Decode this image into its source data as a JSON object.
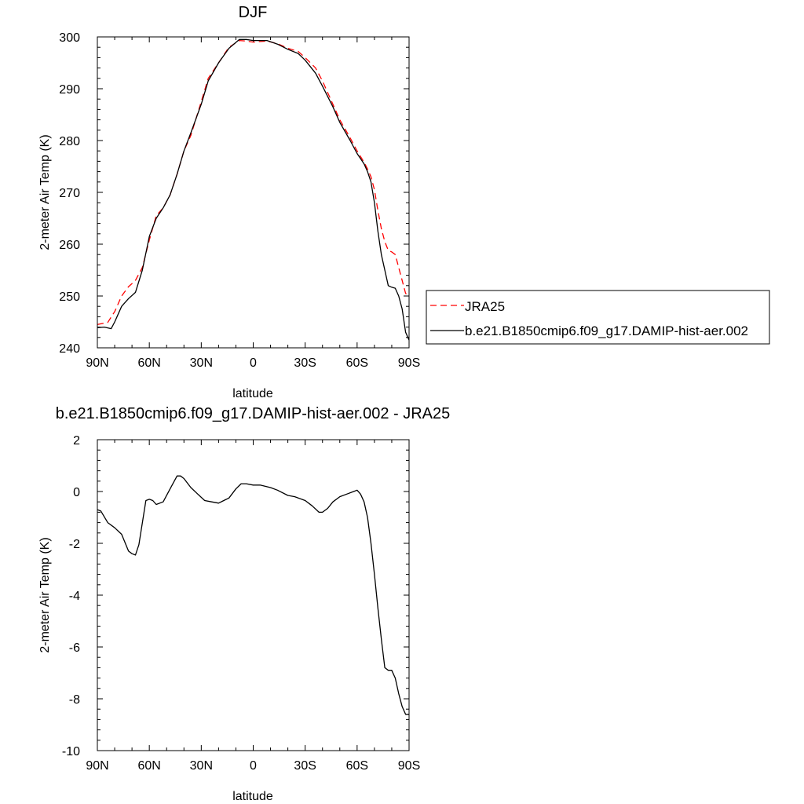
{
  "chart_data": [
    {
      "type": "line",
      "title": "DJF",
      "xlabel": "latitude",
      "ylabel": "2-meter Air Temp (K)",
      "xlim": [
        90,
        -90
      ],
      "ylim": [
        240,
        300
      ],
      "xticks": [
        90,
        60,
        30,
        0,
        -30,
        -60,
        -90
      ],
      "xtick_labels": [
        "90N",
        "60N",
        "30N",
        "0",
        "30S",
        "60S",
        "90S"
      ],
      "yticks": [
        240,
        250,
        260,
        270,
        280,
        290,
        300
      ],
      "ytick_labels": [
        "240",
        "250",
        "260",
        "270",
        "280",
        "290",
        "300"
      ],
      "legend_position": "right",
      "series": [
        {
          "name": "JRA25",
          "color": "#ff0000",
          "dash": "dashed",
          "x": [
            90,
            84,
            80,
            76,
            72,
            68,
            64,
            60,
            56,
            52,
            48,
            44,
            40,
            36,
            30,
            26,
            20,
            14,
            8,
            4,
            0,
            -4,
            -8,
            -14,
            -20,
            -26,
            -30,
            -36,
            -40,
            -46,
            -50,
            -56,
            -60,
            -64,
            -66,
            -68,
            -70,
            -72,
            -74,
            -76,
            -78,
            -80,
            -82,
            -84,
            -86,
            -88,
            -90
          ],
          "y": [
            244.5,
            244.9,
            247.0,
            250.0,
            251.8,
            253.0,
            255.5,
            260.8,
            265.5,
            267.0,
            269.5,
            273.5,
            278.0,
            281.0,
            287.5,
            292.0,
            295.0,
            298.0,
            299.3,
            299.2,
            299.0,
            299.1,
            299.2,
            298.7,
            297.8,
            297.2,
            296.0,
            294.0,
            291.5,
            287.0,
            284.0,
            280.5,
            278.0,
            275.8,
            274.5,
            273.0,
            270.5,
            266.5,
            263.0,
            260.5,
            258.8,
            258.5,
            258.0,
            255.5,
            253.0,
            250.5,
            250.0
          ]
        },
        {
          "name": "b.e21.B1850cmip6.f09_g17.DAMIP-hist-aer.002",
          "color": "#000000",
          "dash": "solid",
          "x": [
            90,
            86,
            82,
            80,
            76,
            72,
            68,
            64,
            60,
            56,
            52,
            48,
            44,
            40,
            36,
            30,
            26,
            20,
            14,
            8,
            4,
            0,
            -4,
            -8,
            -14,
            -20,
            -26,
            -30,
            -36,
            -40,
            -46,
            -50,
            -56,
            -60,
            -64,
            -66,
            -68,
            -70,
            -72,
            -74,
            -76,
            -78,
            -80,
            -82,
            -84,
            -86,
            -88,
            -90
          ],
          "y": [
            243.9,
            244.0,
            243.7,
            245.0,
            248.0,
            249.5,
            250.7,
            255.0,
            261.5,
            265.0,
            267.0,
            269.5,
            273.5,
            278.0,
            281.5,
            287.0,
            291.5,
            295.0,
            297.8,
            299.5,
            299.5,
            299.3,
            299.3,
            299.3,
            298.6,
            297.6,
            296.8,
            295.5,
            293.0,
            290.5,
            286.5,
            283.5,
            280.0,
            277.5,
            275.5,
            274.0,
            272.0,
            268.0,
            262.5,
            258.0,
            255.0,
            252.0,
            251.7,
            251.5,
            250.0,
            247.5,
            243.0,
            241.5
          ]
        }
      ]
    },
    {
      "type": "line",
      "title": "b.e21.B1850cmip6.f09_g17.DAMIP-hist-aer.002 - JRA25",
      "xlabel": "latitude",
      "ylabel": "2-meter Air Temp (K)",
      "xlim": [
        90,
        -90
      ],
      "ylim": [
        -10,
        2
      ],
      "xticks": [
        90,
        60,
        30,
        0,
        -30,
        -60,
        -90
      ],
      "xtick_labels": [
        "90N",
        "60N",
        "30N",
        "0",
        "30S",
        "60S",
        "90S"
      ],
      "yticks": [
        -10,
        -8,
        -6,
        -4,
        -2,
        0,
        2
      ],
      "ytick_labels": [
        "-10",
        "-8",
        "-6",
        "-4",
        "-2",
        "0",
        "2"
      ],
      "series": [
        {
          "color": "#000000",
          "dash": "solid",
          "x": [
            90,
            88,
            84,
            80,
            76,
            72,
            70,
            68,
            66,
            62,
            60,
            58,
            56,
            52,
            48,
            44,
            42,
            40,
            36,
            32,
            28,
            24,
            20,
            17,
            14,
            10,
            7,
            4,
            0,
            -4,
            -10,
            -14,
            -20,
            -24,
            -30,
            -34,
            -38,
            -40,
            -43,
            -46,
            -50,
            -54,
            -58,
            -60,
            -62,
            -64,
            -66,
            -68,
            -70,
            -72,
            -74,
            -76,
            -78,
            -80,
            -82,
            -84,
            -86,
            -88,
            -90
          ],
          "y": [
            -0.7,
            -0.75,
            -1.2,
            -1.4,
            -1.65,
            -2.3,
            -2.4,
            -2.45,
            -2.05,
            -0.35,
            -0.3,
            -0.35,
            -0.5,
            -0.4,
            0.1,
            0.6,
            0.6,
            0.5,
            0.15,
            -0.1,
            -0.35,
            -0.4,
            -0.45,
            -0.35,
            -0.25,
            0.1,
            0.3,
            0.3,
            0.25,
            0.25,
            0.15,
            0.05,
            -0.15,
            -0.2,
            -0.35,
            -0.55,
            -0.8,
            -0.8,
            -0.65,
            -0.4,
            -0.2,
            -0.1,
            0.0,
            0.05,
            -0.1,
            -0.4,
            -1.0,
            -2.0,
            -3.2,
            -4.5,
            -5.7,
            -6.8,
            -6.9,
            -6.9,
            -7.2,
            -7.8,
            -8.3,
            -8.6,
            -8.6
          ]
        }
      ]
    }
  ]
}
